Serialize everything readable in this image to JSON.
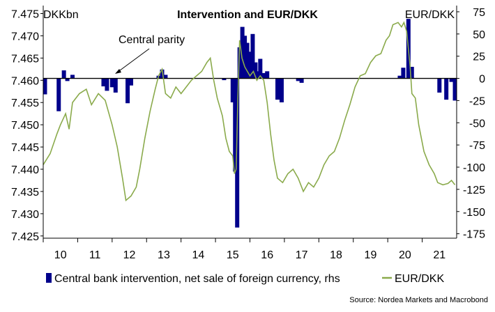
{
  "chart_data": {
    "type": "bar+line",
    "title": "Intervention and EUR/DKK",
    "left_axis_label": "DKKbn",
    "right_axis_label": "EUR/DKK",
    "annotation": "Central parity",
    "source": "Source: Nordea Markets and Macrobond",
    "legend": {
      "position": "bottom",
      "items": [
        {
          "label": "Central bank intervention, net sale of foreign currency, rhs",
          "color": "#00008b",
          "kind": "bar"
        },
        {
          "label": "EUR/DKK",
          "color": "#8aaa4b",
          "kind": "line"
        }
      ]
    },
    "x_axis": {
      "range": [
        2009.5,
        2021.5
      ],
      "tick_labels": [
        "10",
        "11",
        "12",
        "13",
        "14",
        "15",
        "16",
        "17",
        "18",
        "19",
        "20",
        "21"
      ],
      "tick_positions": [
        2010,
        2011,
        2012,
        2013,
        2014,
        2015,
        2016,
        2017,
        2018,
        2019,
        2020,
        2021
      ]
    },
    "left_axis": {
      "range": [
        7.4245,
        7.4768
      ],
      "ticks": [
        "7.475",
        "7.470",
        "7.465",
        "7.460",
        "7.455",
        "7.450",
        "7.445",
        "7.440",
        "7.435",
        "7.430",
        "7.425"
      ]
    },
    "right_axis": {
      "range": [
        -180,
        82
      ],
      "ticks": [
        "75",
        "50",
        "25",
        "0",
        "-25",
        "-50",
        "-75",
        "-100",
        "-125",
        "-150",
        "-175"
      ]
    },
    "central_parity": 7.46038,
    "colors": {
      "bars": "#00008b",
      "line": "#8aaa4b",
      "baseline": "#000000"
    },
    "intervention_bars": [
      {
        "x": 2009.55,
        "value": -18
      },
      {
        "x": 2009.95,
        "value": -37
      },
      {
        "x": 2010.1,
        "value": 9
      },
      {
        "x": 2010.2,
        "value": -3
      },
      {
        "x": 2010.35,
        "value": 4
      },
      {
        "x": 2011.25,
        "value": -9
      },
      {
        "x": 2011.35,
        "value": -14
      },
      {
        "x": 2011.5,
        "value": -10
      },
      {
        "x": 2011.6,
        "value": -16
      },
      {
        "x": 2011.95,
        "value": -28
      },
      {
        "x": 2012.05,
        "value": -8
      },
      {
        "x": 2012.85,
        "value": 3
      },
      {
        "x": 2012.95,
        "value": 10
      },
      {
        "x": 2013.05,
        "value": 4
      },
      {
        "x": 2014.75,
        "value": -2
      },
      {
        "x": 2015.0,
        "value": -27
      },
      {
        "x": 2015.07,
        "value": -105
      },
      {
        "x": 2015.13,
        "value": -168
      },
      {
        "x": 2015.2,
        "value": 35
      },
      {
        "x": 2015.28,
        "value": 58
      },
      {
        "x": 2015.35,
        "value": 48
      },
      {
        "x": 2015.42,
        "value": 40
      },
      {
        "x": 2015.5,
        "value": 30
      },
      {
        "x": 2015.58,
        "value": 50
      },
      {
        "x": 2015.66,
        "value": 18
      },
      {
        "x": 2015.72,
        "value": 8
      },
      {
        "x": 2015.8,
        "value": 22
      },
      {
        "x": 2015.9,
        "value": 6
      },
      {
        "x": 2016.0,
        "value": 8
      },
      {
        "x": 2016.3,
        "value": -24
      },
      {
        "x": 2016.42,
        "value": -27
      },
      {
        "x": 2016.9,
        "value": -3
      },
      {
        "x": 2017.0,
        "value": -5
      },
      {
        "x": 2019.85,
        "value": 3
      },
      {
        "x": 2019.95,
        "value": 12
      },
      {
        "x": 2020.1,
        "value": 67
      },
      {
        "x": 2020.2,
        "value": 13
      },
      {
        "x": 2021.0,
        "value": -16
      },
      {
        "x": 2021.2,
        "value": -24
      },
      {
        "x": 2021.35,
        "value": -4
      },
      {
        "x": 2021.45,
        "value": -25
      }
    ],
    "eurdkk_series": [
      {
        "x": 2009.5,
        "y": 7.441
      },
      {
        "x": 2009.7,
        "y": 7.4435
      },
      {
        "x": 2009.9,
        "y": 7.448
      },
      {
        "x": 2010.0,
        "y": 7.45
      },
      {
        "x": 2010.15,
        "y": 7.4525
      },
      {
        "x": 2010.25,
        "y": 7.449
      },
      {
        "x": 2010.35,
        "y": 7.455
      },
      {
        "x": 2010.55,
        "y": 7.457
      },
      {
        "x": 2010.75,
        "y": 7.458
      },
      {
        "x": 2010.9,
        "y": 7.4545
      },
      {
        "x": 2011.1,
        "y": 7.457
      },
      {
        "x": 2011.3,
        "y": 7.4555
      },
      {
        "x": 2011.5,
        "y": 7.45
      },
      {
        "x": 2011.65,
        "y": 7.445
      },
      {
        "x": 2011.8,
        "y": 7.438
      },
      {
        "x": 2011.9,
        "y": 7.433
      },
      {
        "x": 2012.05,
        "y": 7.434
      },
      {
        "x": 2012.2,
        "y": 7.436
      },
      {
        "x": 2012.3,
        "y": 7.44
      },
      {
        "x": 2012.45,
        "y": 7.447
      },
      {
        "x": 2012.6,
        "y": 7.453
      },
      {
        "x": 2012.75,
        "y": 7.458
      },
      {
        "x": 2012.85,
        "y": 7.461
      },
      {
        "x": 2012.95,
        "y": 7.4625
      },
      {
        "x": 2013.05,
        "y": 7.457
      },
      {
        "x": 2013.2,
        "y": 7.456
      },
      {
        "x": 2013.35,
        "y": 7.4585
      },
      {
        "x": 2013.5,
        "y": 7.457
      },
      {
        "x": 2013.65,
        "y": 7.4585
      },
      {
        "x": 2013.8,
        "y": 7.46
      },
      {
        "x": 2013.95,
        "y": 7.461
      },
      {
        "x": 2014.1,
        "y": 7.462
      },
      {
        "x": 2014.25,
        "y": 7.464
      },
      {
        "x": 2014.35,
        "y": 7.465
      },
      {
        "x": 2014.45,
        "y": 7.46
      },
      {
        "x": 2014.55,
        "y": 7.456
      },
      {
        "x": 2014.7,
        "y": 7.452
      },
      {
        "x": 2014.8,
        "y": 7.447
      },
      {
        "x": 2014.9,
        "y": 7.444
      },
      {
        "x": 2015.0,
        "y": 7.443
      },
      {
        "x": 2015.05,
        "y": 7.439
      },
      {
        "x": 2015.1,
        "y": 7.44
      },
      {
        "x": 2015.15,
        "y": 7.456
      },
      {
        "x": 2015.2,
        "y": 7.469
      },
      {
        "x": 2015.27,
        "y": 7.465
      },
      {
        "x": 2015.35,
        "y": 7.463
      },
      {
        "x": 2015.5,
        "y": 7.461
      },
      {
        "x": 2015.6,
        "y": 7.462
      },
      {
        "x": 2015.7,
        "y": 7.46
      },
      {
        "x": 2015.8,
        "y": 7.461
      },
      {
        "x": 2015.9,
        "y": 7.46
      },
      {
        "x": 2016.0,
        "y": 7.455
      },
      {
        "x": 2016.1,
        "y": 7.448
      },
      {
        "x": 2016.2,
        "y": 7.442
      },
      {
        "x": 2016.3,
        "y": 7.438
      },
      {
        "x": 2016.45,
        "y": 7.437
      },
      {
        "x": 2016.6,
        "y": 7.439
      },
      {
        "x": 2016.75,
        "y": 7.44
      },
      {
        "x": 2016.9,
        "y": 7.438
      },
      {
        "x": 2017.05,
        "y": 7.435
      },
      {
        "x": 2017.2,
        "y": 7.437
      },
      {
        "x": 2017.35,
        "y": 7.436
      },
      {
        "x": 2017.5,
        "y": 7.438
      },
      {
        "x": 2017.65,
        "y": 7.441
      },
      {
        "x": 2017.8,
        "y": 7.443
      },
      {
        "x": 2017.95,
        "y": 7.444
      },
      {
        "x": 2018.1,
        "y": 7.447
      },
      {
        "x": 2018.25,
        "y": 7.451
      },
      {
        "x": 2018.4,
        "y": 7.4545
      },
      {
        "x": 2018.55,
        "y": 7.4585
      },
      {
        "x": 2018.7,
        "y": 7.461
      },
      {
        "x": 2018.85,
        "y": 7.4615
      },
      {
        "x": 2019.0,
        "y": 7.464
      },
      {
        "x": 2019.15,
        "y": 7.4655
      },
      {
        "x": 2019.3,
        "y": 7.466
      },
      {
        "x": 2019.45,
        "y": 7.469
      },
      {
        "x": 2019.55,
        "y": 7.47
      },
      {
        "x": 2019.65,
        "y": 7.4725
      },
      {
        "x": 2019.8,
        "y": 7.473
      },
      {
        "x": 2019.9,
        "y": 7.472
      },
      {
        "x": 2019.97,
        "y": 7.473
      },
      {
        "x": 2020.05,
        "y": 7.471
      },
      {
        "x": 2020.15,
        "y": 7.463
      },
      {
        "x": 2020.2,
        "y": 7.457
      },
      {
        "x": 2020.3,
        "y": 7.456
      },
      {
        "x": 2020.4,
        "y": 7.45
      },
      {
        "x": 2020.55,
        "y": 7.444
      },
      {
        "x": 2020.7,
        "y": 7.441
      },
      {
        "x": 2020.85,
        "y": 7.439
      },
      {
        "x": 2020.95,
        "y": 7.437
      },
      {
        "x": 2021.1,
        "y": 7.4365
      },
      {
        "x": 2021.25,
        "y": 7.4368
      },
      {
        "x": 2021.35,
        "y": 7.4375
      },
      {
        "x": 2021.45,
        "y": 7.4365
      }
    ]
  }
}
